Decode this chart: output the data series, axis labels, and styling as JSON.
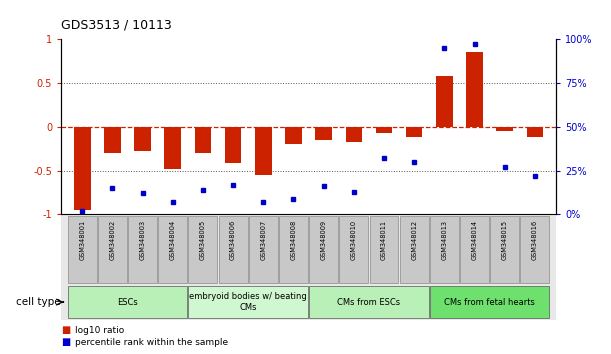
{
  "title": "GDS3513 / 10113",
  "samples": [
    "GSM348001",
    "GSM348002",
    "GSM348003",
    "GSM348004",
    "GSM348005",
    "GSM348006",
    "GSM348007",
    "GSM348008",
    "GSM348009",
    "GSM348010",
    "GSM348011",
    "GSM348012",
    "GSM348013",
    "GSM348014",
    "GSM348015",
    "GSM348016"
  ],
  "log10_ratio": [
    -0.95,
    -0.3,
    -0.28,
    -0.48,
    -0.3,
    -0.42,
    -0.55,
    -0.2,
    -0.15,
    -0.18,
    -0.07,
    -0.12,
    0.58,
    0.85,
    -0.05,
    -0.12
  ],
  "percentile_rank": [
    2,
    15,
    12,
    7,
    14,
    17,
    7,
    9,
    16,
    13,
    32,
    30,
    95,
    97,
    27,
    22
  ],
  "cell_types": [
    {
      "label": "ESCs",
      "start": 0,
      "end": 4,
      "color": "#b8f0b8"
    },
    {
      "label": "embryoid bodies w/ beating\nCMs",
      "start": 4,
      "end": 8,
      "color": "#d0f8d0"
    },
    {
      "label": "CMs from ESCs",
      "start": 8,
      "end": 12,
      "color": "#b8f0b8"
    },
    {
      "label": "CMs from fetal hearts",
      "start": 12,
      "end": 16,
      "color": "#6ee06e"
    }
  ],
  "ylim_left": [
    -1,
    1
  ],
  "ylim_right": [
    0,
    100
  ],
  "yticks_left": [
    -1,
    -0.5,
    0,
    0.5,
    1
  ],
  "ytick_labels_left": [
    "-1",
    "-0.5",
    "0",
    "0.5",
    "1"
  ],
  "yticks_right": [
    0,
    25,
    50,
    75,
    100
  ],
  "ytick_labels_right": [
    "0%",
    "25%",
    "50%",
    "75%",
    "100%"
  ],
  "bar_color": "#cc2200",
  "dot_color": "#0000cc",
  "hline_color": "#cc2200",
  "dotted_color": "#555555",
  "legend_red": "log10 ratio",
  "legend_blue": "percentile rank within the sample",
  "cell_type_label": "cell type",
  "sample_box_color": "#c8c8c8",
  "sample_box_edge": "#888888",
  "background_fig": "#ffffff"
}
